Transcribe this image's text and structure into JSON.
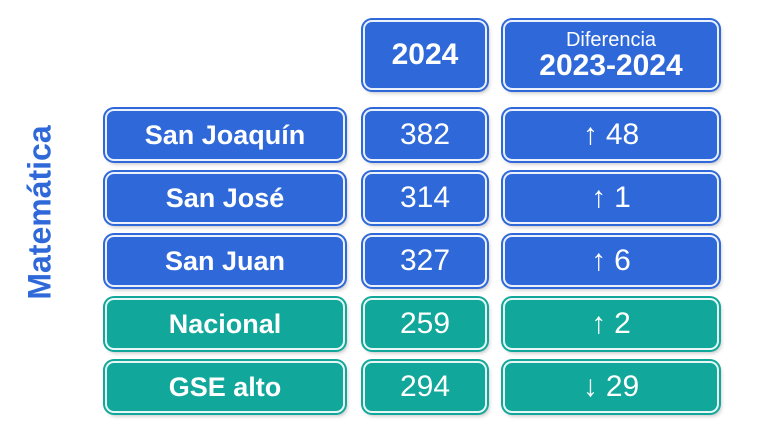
{
  "subject": "Matemática",
  "header": {
    "year": "2024",
    "diff_line1": "Diferencia",
    "diff_line2": "2023-2024"
  },
  "rows": [
    {
      "label": "San Joaquín",
      "score": "382",
      "arrow": "↑",
      "diff": "48",
      "color": "#2f68d9"
    },
    {
      "label": "San José",
      "score": "314",
      "arrow": "↑",
      "diff": "1",
      "color": "#2f68d9"
    },
    {
      "label": "San Juan",
      "score": "327",
      "arrow": "↑",
      "diff": "6",
      "color": "#2f68d9"
    },
    {
      "label": "Nacional",
      "score": "259",
      "arrow": "↑",
      "diff": "2",
      "color": "#11a89b"
    },
    {
      "label": "GSE alto",
      "score": "294",
      "arrow": "↓",
      "diff": "29",
      "color": "#11a89b"
    }
  ],
  "colors": {
    "school_blue": "#2f68d9",
    "reference_green": "#11a89b"
  }
}
